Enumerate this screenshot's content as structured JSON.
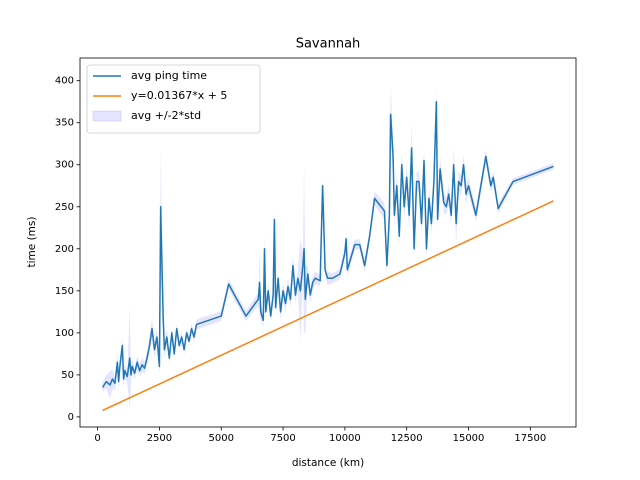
{
  "chart_data": {
    "type": "line",
    "title": "Savannah",
    "xlabel": "distance (km)",
    "ylabel": "time (ms)",
    "xlim": [
      -712,
      19347
    ],
    "ylim": [
      -12,
      427
    ],
    "xticks": [
      0,
      2500,
      5000,
      7500,
      10000,
      12500,
      15000,
      17500
    ],
    "yticks": [
      0,
      50,
      100,
      150,
      200,
      250,
      300,
      350,
      400
    ],
    "legend": "upper left",
    "series": [
      {
        "name": "avg ping time",
        "color": "#1f77b4",
        "x": [
          200,
          350,
          500,
          600,
          700,
          800,
          850,
          900,
          1000,
          1050,
          1100,
          1200,
          1300,
          1350,
          1400,
          1500,
          1600,
          1700,
          1800,
          1900,
          2000,
          2100,
          2200,
          2300,
          2400,
          2500,
          2550,
          2650,
          2700,
          2800,
          2900,
          3000,
          3100,
          3200,
          3300,
          3400,
          3500,
          3600,
          3700,
          3800,
          3900,
          4000,
          5000,
          5300,
          6000,
          6500,
          6550,
          6600,
          6700,
          6750,
          6800,
          6900,
          7000,
          7100,
          7150,
          7200,
          7300,
          7400,
          7500,
          7600,
          7700,
          7800,
          7900,
          8000,
          8100,
          8200,
          8300,
          8350,
          8400,
          8500,
          8600,
          8700,
          8800,
          9000,
          9100,
          9200,
          9300,
          9500,
          9800,
          10000,
          10050,
          10100,
          10400,
          10600,
          10800,
          11000,
          11200,
          11600,
          11700,
          11800,
          11850,
          11950,
          12000,
          12100,
          12200,
          12300,
          12400,
          12500,
          12600,
          12700,
          12800,
          12900,
          13000,
          13100,
          13200,
          13300,
          13400,
          13500,
          13600,
          13700,
          13750,
          13850,
          14000,
          14100,
          14200,
          14300,
          14400,
          14500,
          14600,
          14700,
          14800,
          14900,
          15000,
          15300,
          15500,
          15700,
          15900,
          16000,
          16200,
          16800,
          18435
        ],
        "values": [
          35,
          42,
          38,
          45,
          40,
          65,
          42,
          60,
          85,
          45,
          55,
          48,
          70,
          50,
          60,
          52,
          65,
          55,
          62,
          58,
          70,
          85,
          105,
          80,
          95,
          60,
          250,
          120,
          80,
          95,
          70,
          100,
          75,
          105,
          85,
          95,
          80,
          100,
          90,
          105,
          95,
          110,
          120,
          158,
          120,
          140,
          160,
          125,
          115,
          200,
          125,
          150,
          120,
          145,
          235,
          130,
          165,
          125,
          150,
          135,
          155,
          140,
          180,
          145,
          165,
          150,
          180,
          200,
          140,
          170,
          145,
          160,
          165,
          162,
          275,
          175,
          165,
          165,
          170,
          195,
          212,
          175,
          205,
          205,
          180,
          215,
          260,
          245,
          180,
          240,
          360,
          310,
          240,
          275,
          215,
          300,
          250,
          285,
          240,
          320,
          200,
          280,
          280,
          230,
          305,
          200,
          260,
          230,
          280,
          375,
          235,
          295,
          255,
          250,
          265,
          240,
          300,
          230,
          280,
          275,
          300,
          265,
          275,
          240,
          275,
          310,
          275,
          285,
          248,
          280,
          298
        ]
      },
      {
        "name": "y=0.01367*x + 5",
        "color": "#ff7f0e",
        "x": [
          200,
          18435
        ],
        "values": [
          7.7,
          257.0
        ]
      }
    ],
    "band": {
      "name": "avg +/-2*std",
      "color": "#0000ff",
      "std": [
        3,
        4,
        8,
        6,
        4,
        5,
        6,
        5,
        4,
        5,
        4,
        4,
        30,
        5,
        4,
        4,
        4,
        4,
        4,
        4,
        4,
        5,
        6,
        5,
        5,
        5,
        35,
        8,
        5,
        5,
        3,
        3,
        3,
        3,
        3,
        3,
        3,
        3,
        3,
        3,
        3,
        3,
        3,
        3,
        3,
        4,
        20,
        5,
        4,
        10,
        4,
        5,
        4,
        5,
        8,
        5,
        5,
        5,
        5,
        5,
        5,
        5,
        6,
        5,
        6,
        30,
        8,
        50,
        20,
        5,
        5,
        4,
        4,
        3,
        5,
        4,
        4,
        3,
        3,
        4,
        4,
        4,
        3,
        3,
        4,
        4,
        4,
        5,
        6,
        8,
        17,
        10,
        8,
        8,
        6,
        8,
        8,
        8,
        8,
        15,
        6,
        6,
        6,
        6,
        8,
        6,
        6,
        6,
        6,
        8,
        6,
        8,
        6,
        5,
        6,
        6,
        10,
        12,
        6,
        6,
        6,
        6,
        5,
        4,
        4,
        4,
        4,
        4,
        3,
        2,
        2
      ]
    }
  }
}
